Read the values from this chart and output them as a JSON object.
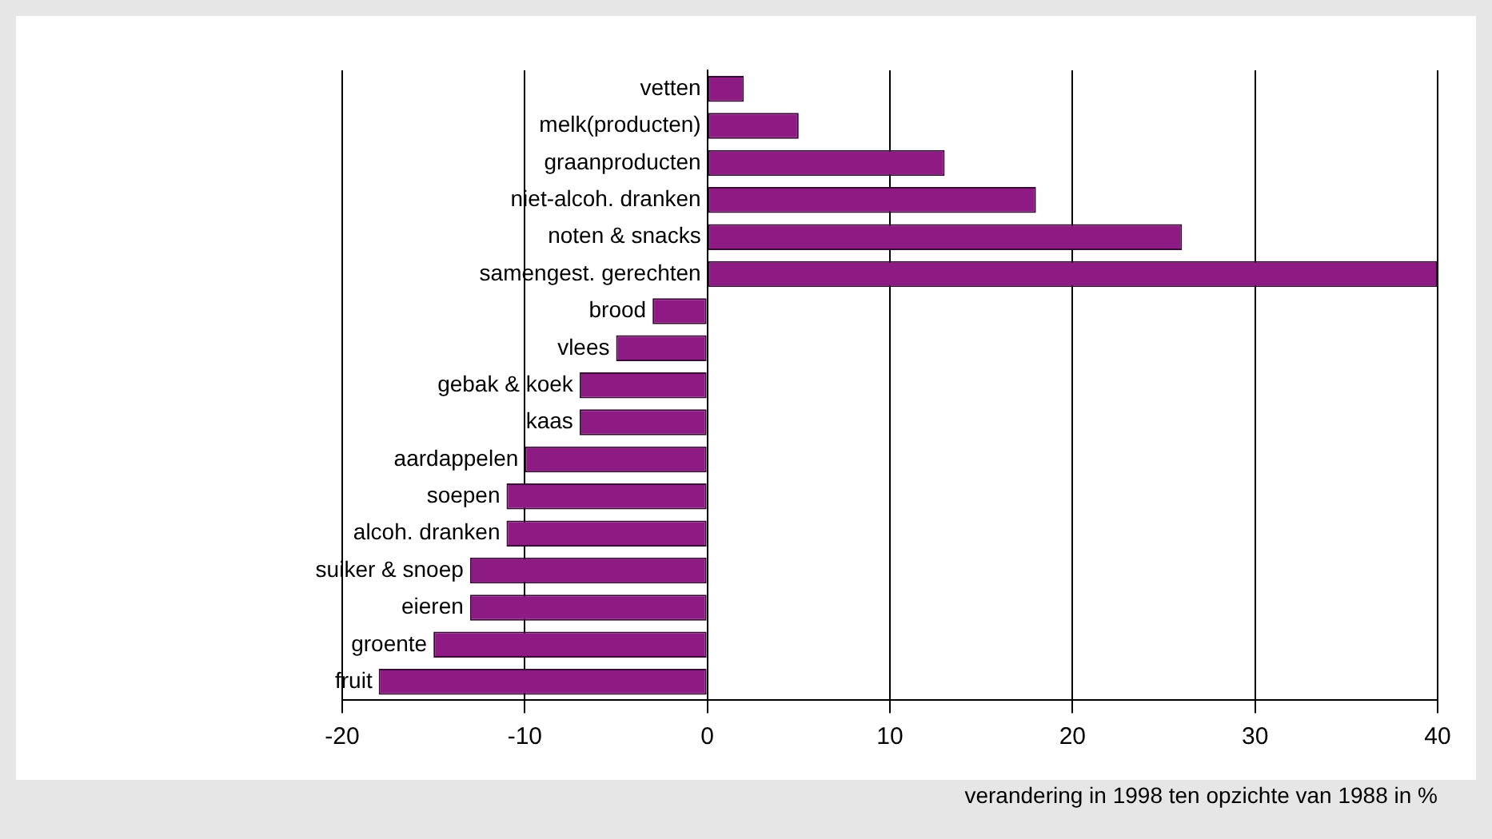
{
  "chart_data": {
    "type": "bar",
    "orientation": "horizontal",
    "xlabel": "verandering in 1998 ten opzichte van 1988 in %",
    "categories": [
      "vetten",
      "melk(producten)",
      "graanproducten",
      "niet-alcoh. dranken",
      "noten & snacks",
      "samengest. gerechten",
      "brood",
      "vlees",
      "gebak & koek",
      "kaas",
      "aardappelen",
      "soepen",
      "alcoh. dranken",
      "suiker & snoep",
      "eieren",
      "groente",
      "fruit"
    ],
    "values": [
      2,
      5,
      13,
      18,
      26,
      40,
      -3,
      -5,
      -7,
      -7,
      -10,
      -11,
      -11,
      -13,
      -13,
      -15,
      -18
    ],
    "color": "#8e1b83",
    "xlim": [
      -20,
      40
    ],
    "xticks": [
      -20,
      -10,
      0,
      10,
      20,
      30,
      40
    ],
    "grid": "x",
    "legend": false
  }
}
